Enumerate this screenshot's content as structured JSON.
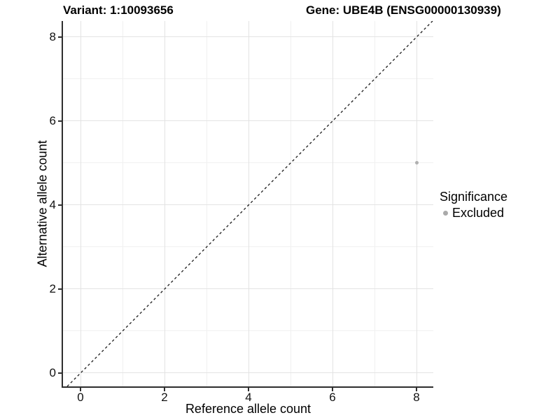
{
  "title": {
    "variant": "Variant: 1:10093656",
    "gene": "Gene: UBE4B (ENSG00000130939)"
  },
  "axes": {
    "x_label": "Reference allele count",
    "y_label": "Alternative allele count"
  },
  "legend": {
    "title": "Significance",
    "items": [
      {
        "label": "Excluded",
        "color": "#aaaaaa"
      }
    ]
  },
  "chart_data": {
    "type": "scatter",
    "title": "Variant: 1:10093656   Gene: UBE4B (ENSG00000130939)",
    "xlabel": "Reference allele count",
    "ylabel": "Alternative allele count",
    "xlim": [
      -0.417,
      8.4
    ],
    "ylim": [
      -0.317,
      8.383
    ],
    "x_ticks": [
      0,
      2,
      4,
      6,
      8
    ],
    "y_ticks": [
      0,
      2,
      4,
      6,
      8
    ],
    "x_minor_ticks": [
      1,
      3,
      5,
      7
    ],
    "y_minor_ticks": [
      1,
      3,
      5,
      7
    ],
    "grid": true,
    "legend_position": "right",
    "series": [
      {
        "name": "Excluded",
        "color": "#b0b0b0",
        "points": [
          {
            "x": 8,
            "y": 5
          }
        ]
      }
    ],
    "reference_line": {
      "name": "identity-line",
      "slope": 1,
      "intercept": 0,
      "style": "dashed",
      "color": "#1a1a1a"
    },
    "style": {
      "grid_major_color": "#e3e3e3",
      "grid_minor_color": "#f0f0f0",
      "axis_color": "#2e2e2e",
      "background": "#ffffff",
      "text_color": "#000000"
    }
  }
}
